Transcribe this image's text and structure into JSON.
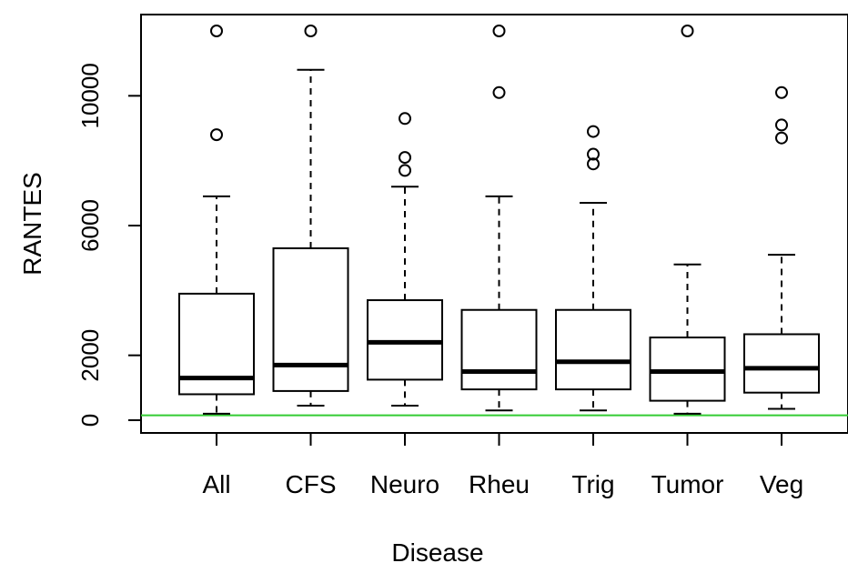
{
  "chart_data": {
    "type": "box",
    "xlabel": "Disease",
    "ylabel": "RANTES",
    "categories": [
      "All",
      "CFS",
      "Neuro",
      "Rheu",
      "Trig",
      "Tumor",
      "Veg"
    ],
    "ylim": [
      -300,
      12200
    ],
    "yticks": [
      0,
      2000,
      6000,
      10000
    ],
    "ytick_labels": [
      "0",
      "2000",
      "6000",
      "10000"
    ],
    "boxes": [
      {
        "category": "All",
        "whisker_low": 200,
        "q1": 800,
        "median": 1300,
        "q3": 3900,
        "whisker_high": 6900,
        "outliers": [
          8800,
          12000
        ]
      },
      {
        "category": "CFS",
        "whisker_low": 450,
        "q1": 900,
        "median": 1700,
        "q3": 5300,
        "whisker_high": 10800,
        "outliers": [
          12000
        ]
      },
      {
        "category": "Neuro",
        "whisker_low": 450,
        "q1": 1250,
        "median": 2400,
        "q3": 3700,
        "whisker_high": 7200,
        "outliers": [
          7700,
          8100,
          9300
        ]
      },
      {
        "category": "Rheu",
        "whisker_low": 300,
        "q1": 950,
        "median": 1500,
        "q3": 3400,
        "whisker_high": 6900,
        "outliers": [
          10100,
          12000
        ]
      },
      {
        "category": "Trig",
        "whisker_low": 300,
        "q1": 950,
        "median": 1800,
        "q3": 3400,
        "whisker_high": 6700,
        "outliers": [
          7900,
          8200,
          8900
        ]
      },
      {
        "category": "Tumor",
        "whisker_low": 200,
        "q1": 600,
        "median": 1500,
        "q3": 2550,
        "whisker_high": 4800,
        "outliers": [
          12000
        ]
      },
      {
        "category": "Veg",
        "whisker_low": 350,
        "q1": 850,
        "median": 1600,
        "q3": 2650,
        "whisker_high": 5100,
        "outliers": [
          8700,
          9100,
          10100
        ]
      }
    ],
    "reference_line": {
      "y": 150,
      "color": "#33cc33"
    },
    "colors": {
      "box_fill": "#ffffff",
      "stroke": "#000000",
      "reference": "#33cc33"
    },
    "grid": false,
    "legend": "none"
  }
}
